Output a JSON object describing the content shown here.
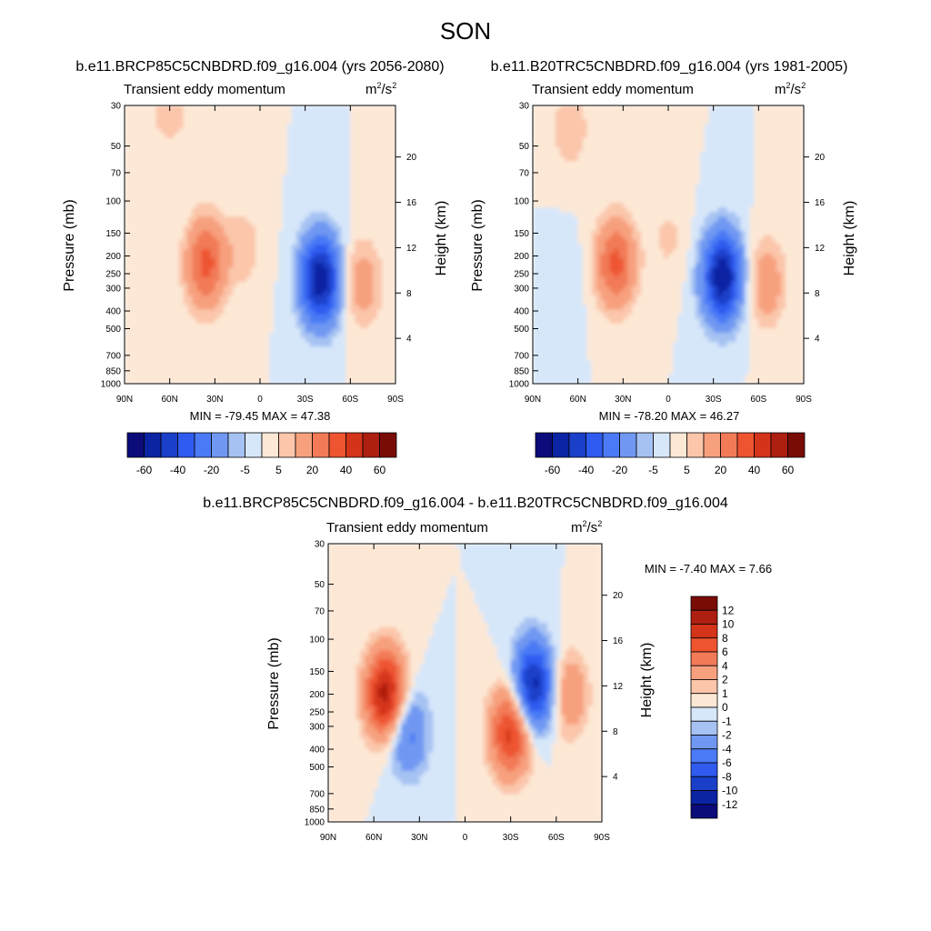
{
  "figure": {
    "title": "SON",
    "panels": [
      {
        "id": "left",
        "subtitle": "b.e11.BRCP85C5CNBDRD.f09_g16.004 (yrs 2056-2080)",
        "left_label": "Transient eddy momentum",
        "right_label": "m2/s2",
        "stats": "MIN = -79.45  MAX =  47.38",
        "ylabel": "Pressure (mb)",
        "y2label": "Height (km)"
      },
      {
        "id": "right",
        "subtitle": "b.e11.B20TRC5CNBDRD.f09_g16.004 (yrs 1981-2005)",
        "left_label": "Transient eddy momentum",
        "right_label": "m2/s2",
        "stats": "MIN = -78.20  MAX =  46.27",
        "ylabel": "Pressure (mb)",
        "y2label": "Height (km)"
      },
      {
        "id": "diff",
        "subtitle": "b.e11.BRCP85C5CNBDRD.f09_g16.004 - b.e11.B20TRC5CNBDRD.f09_g16.004",
        "left_label": "Transient eddy momentum",
        "right_label": "m2/s2",
        "stats": "MIN =  -7.40  MAX =   7.66",
        "ylabel": "Pressure (mb)",
        "y2label": "Height (km)"
      }
    ]
  },
  "chart_data": [
    {
      "type": "heatmap",
      "title": "b.e11.BRCP85C5CNBDRD.f09_g16.004 (yrs 2056-2080)",
      "xlabel": "",
      "ylabel": "Pressure (mb)",
      "y2label": "Height (km)",
      "x_ticks": [
        "90N",
        "60N",
        "30N",
        "0",
        "30S",
        "60S",
        "90S"
      ],
      "y_ticks": [
        30,
        50,
        70,
        100,
        150,
        200,
        250,
        300,
        400,
        500,
        700,
        850,
        1000
      ],
      "y2_ticks": [
        4,
        8,
        12,
        16,
        20
      ],
      "ylim": [
        1000,
        30
      ],
      "y_scale": "log",
      "min": -79.45,
      "max": 47.38,
      "units": "m2/s2",
      "features": [
        {
          "lat": 36,
          "p": 220,
          "value": 45
        },
        {
          "lat": 10,
          "p": 180,
          "value": 10
        },
        {
          "lat": -40,
          "p": 270,
          "value": -79
        },
        {
          "lat": -68,
          "p": 280,
          "value": 20
        },
        {
          "lat": 60,
          "p": 30,
          "value": 12
        }
      ]
    },
    {
      "type": "heatmap",
      "title": "b.e11.B20TRC5CNBDRD.f09_g16.004 (yrs 1981-2005)",
      "xlabel": "",
      "ylabel": "Pressure (mb)",
      "y2label": "Height (km)",
      "x_ticks": [
        "90N",
        "60N",
        "30N",
        "0",
        "30S",
        "60S",
        "90S"
      ],
      "y_ticks": [
        30,
        50,
        70,
        100,
        150,
        200,
        250,
        300,
        400,
        500,
        700,
        850,
        1000
      ],
      "y2_ticks": [
        4,
        8,
        12,
        16,
        20
      ],
      "ylim": [
        1000,
        30
      ],
      "y_scale": "log",
      "min": -78.2,
      "max": 46.27,
      "units": "m2/s2",
      "features": [
        {
          "lat": 35,
          "p": 220,
          "value": 44
        },
        {
          "lat": 0,
          "p": 160,
          "value": 8
        },
        {
          "lat": -36,
          "p": 260,
          "value": -78
        },
        {
          "lat": -65,
          "p": 280,
          "value": 22
        },
        {
          "lat": 68,
          "p": 280,
          "value": -5
        },
        {
          "lat": 65,
          "p": 40,
          "value": 12
        }
      ]
    },
    {
      "type": "heatmap",
      "title": "b.e11.BRCP85C5CNBDRD.f09_g16.004 - b.e11.B20TRC5CNBDRD.f09_g16.004",
      "xlabel": "",
      "ylabel": "Pressure (mb)",
      "y2label": "Height (km)",
      "x_ticks": [
        "90N",
        "60N",
        "30N",
        "0",
        "30S",
        "60S",
        "90S"
      ],
      "y_ticks": [
        30,
        50,
        70,
        100,
        150,
        200,
        250,
        300,
        400,
        500,
        700,
        850,
        1000
      ],
      "y2_ticks": [
        4,
        8,
        12,
        16,
        20
      ],
      "ylim": [
        1000,
        30
      ],
      "y_scale": "log",
      "min": -7.4,
      "max": 7.66,
      "units": "m2/s2",
      "features": [
        {
          "lat": 52,
          "p": 200,
          "value": 7.6
        },
        {
          "lat": 38,
          "p": 320,
          "value": -3.5
        },
        {
          "lat": -30,
          "p": 320,
          "value": 6
        },
        {
          "lat": -45,
          "p": 180,
          "value": -7.4
        },
        {
          "lat": -68,
          "p": 200,
          "value": 2.5
        }
      ]
    }
  ],
  "colorbars": [
    {
      "orientation": "horizontal",
      "labels": [
        "-60",
        "-40",
        "-20",
        "-5",
        "5",
        "20",
        "40",
        "60"
      ],
      "colors": [
        "#0b0b7a",
        "#0b24a3",
        "#1a3fc9",
        "#2f5bf0",
        "#4a7af5",
        "#7098f2",
        "#a6c2f3",
        "#d7e7fa",
        "#fde8d6",
        "#fbc6aa",
        "#f7a07e",
        "#f27a57",
        "#ee5430",
        "#d4341a",
        "#ad1f10",
        "#7a0c06"
      ]
    },
    {
      "orientation": "horizontal",
      "labels": [
        "-60",
        "-40",
        "-20",
        "-5",
        "5",
        "20",
        "40",
        "60"
      ],
      "colors": [
        "#0b0b7a",
        "#0b24a3",
        "#1a3fc9",
        "#2f5bf0",
        "#4a7af5",
        "#7098f2",
        "#a6c2f3",
        "#d7e7fa",
        "#fde8d6",
        "#fbc6aa",
        "#f7a07e",
        "#f27a57",
        "#ee5430",
        "#d4341a",
        "#ad1f10",
        "#7a0c06"
      ]
    },
    {
      "orientation": "vertical",
      "labels": [
        "12",
        "10",
        "8",
        "6",
        "4",
        "2",
        "1",
        "0",
        "-1",
        "-2",
        "-4",
        "-6",
        "-8",
        "-10",
        "-12"
      ],
      "colors": [
        "#7a0c06",
        "#ad1f10",
        "#d4341a",
        "#ee5430",
        "#f27a57",
        "#f7a07e",
        "#fbc6aa",
        "#fde8d6",
        "#d7e7fa",
        "#a6c2f3",
        "#7098f2",
        "#4a7af5",
        "#2f5bf0",
        "#1a3fc9",
        "#0b24a3",
        "#0b0b7a"
      ]
    }
  ]
}
